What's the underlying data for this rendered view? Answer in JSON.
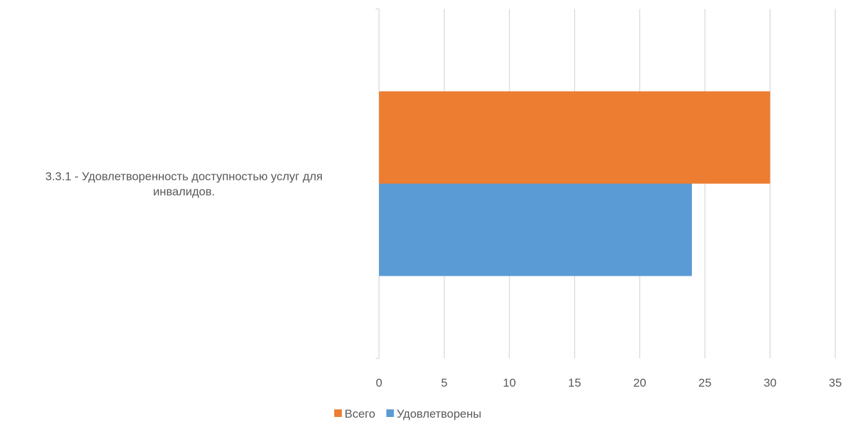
{
  "chart_data": {
    "type": "bar",
    "orientation": "horizontal",
    "categories": [
      "3.3.1 - Удовлетворенность доступностью услуг для инвалидов."
    ],
    "category_label_lines": [
      "3.3.1 - Удовлетворенность доступностью услуг для",
      "инвалидов."
    ],
    "series": [
      {
        "name": "Всего",
        "values": [
          30
        ],
        "color": "#ED7D31"
      },
      {
        "name": "Удовлетворены",
        "values": [
          24
        ],
        "color": "#5B9BD5"
      }
    ],
    "xlim": [
      0,
      35
    ],
    "x_ticks": [
      0,
      5,
      10,
      15,
      20,
      25,
      30,
      35
    ],
    "title": "",
    "xlabel": "",
    "ylabel": "",
    "grid": "vertical",
    "legend_position": "bottom"
  }
}
